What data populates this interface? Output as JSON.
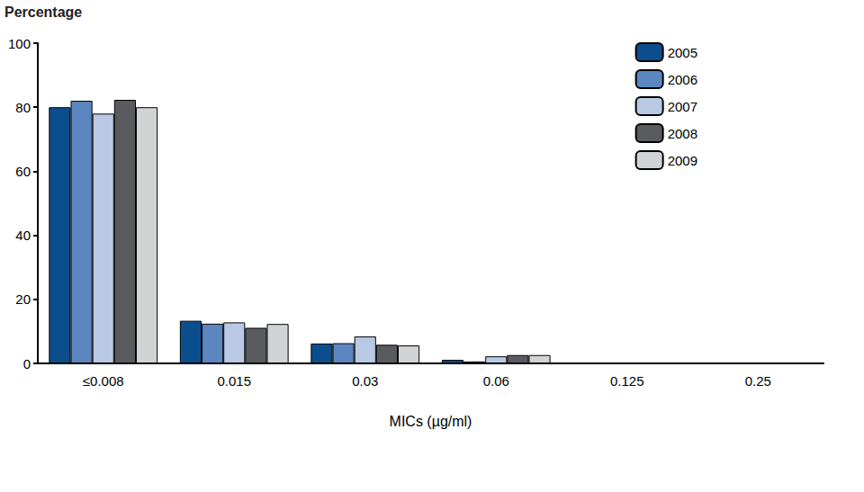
{
  "chart_data": {
    "type": "bar",
    "y_label": "Percentage",
    "x_label": "MICs (µg/ml)",
    "categories": [
      "≤0.008",
      "0.015",
      "0.03",
      "0.06",
      "0.125",
      "0.25"
    ],
    "series": [
      {
        "name": "2005",
        "color": "#0b4e8e",
        "values": [
          80,
          13.3,
          6.2,
          1.1,
          0.1,
          0
        ]
      },
      {
        "name": "2006",
        "color": "#5b86c0",
        "values": [
          82,
          12.4,
          6.3,
          0.6,
          0,
          0
        ]
      },
      {
        "name": "2007",
        "color": "#b9c9e3",
        "values": [
          78,
          12.8,
          8.4,
          2.2,
          0,
          0
        ]
      },
      {
        "name": "2008",
        "color": "#5a5b5e",
        "values": [
          82.3,
          11.1,
          5.8,
          2.6,
          0,
          0
        ]
      },
      {
        "name": "2009",
        "color": "#d2d3d5",
        "values": [
          80,
          12.3,
          5.6,
          2.6,
          0.1,
          0
        ]
      }
    ],
    "ylim": [
      0,
      100
    ],
    "yticks": [
      0,
      20,
      40,
      60,
      80,
      100
    ],
    "grid": false,
    "legend": "upper right"
  }
}
